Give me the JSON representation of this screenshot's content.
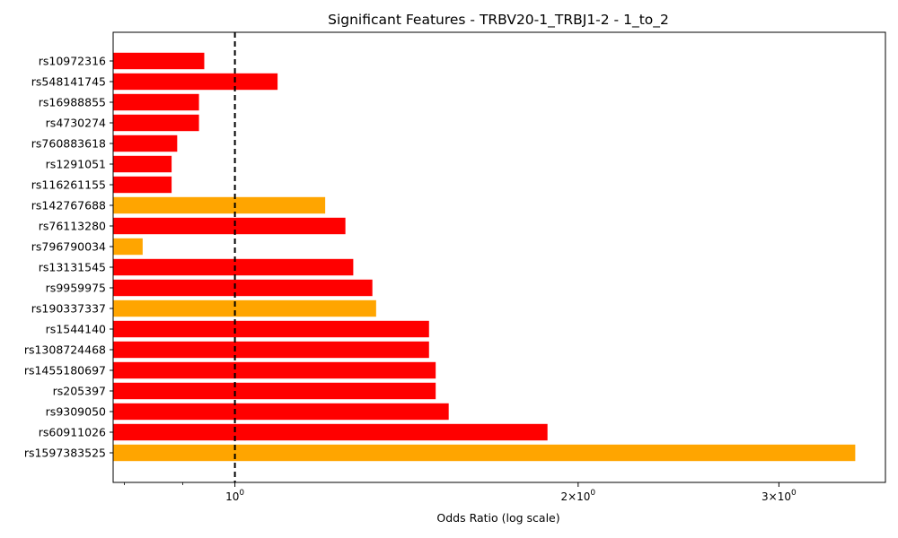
{
  "chart_data": {
    "type": "bar",
    "orientation": "horizontal",
    "title": "Significant Features - TRBV20-1_TRBJ1-2 - 1_to_2",
    "xlabel": "Odds Ratio (log scale)",
    "ylabel": "",
    "xscale": "log",
    "xlim": [
      0.782,
      3.72
    ],
    "reference_line": {
      "x": 1.0,
      "style": "dashed",
      "color": "#000000"
    },
    "x_ticks": [
      {
        "value": 1,
        "base": "10",
        "exponent": "0"
      },
      {
        "value": 2,
        "base": "2×10",
        "exponent": "0"
      },
      {
        "value": 3,
        "base": "3×10",
        "exponent": "0"
      }
    ],
    "colors": {
      "red": "#ff0000",
      "orange": "#ffa500"
    },
    "categories": [
      "rs10972316",
      "rs548141745",
      "rs16988855",
      "rs4730274",
      "rs760883618",
      "rs1291051",
      "rs116261155",
      "rs142767688",
      "rs76113280",
      "rs796790034",
      "rs13131545",
      "rs9959975",
      "rs190337337",
      "rs1544140",
      "rs1308724468",
      "rs1455180697",
      "rs205397",
      "rs9309050",
      "rs60911026",
      "rs1597383525"
    ],
    "values": [
      0.94,
      1.09,
      0.93,
      0.93,
      0.89,
      0.88,
      0.88,
      1.2,
      1.25,
      0.83,
      1.27,
      1.32,
      1.33,
      1.48,
      1.48,
      1.5,
      1.5,
      1.54,
      1.88,
      3.5
    ],
    "bar_colors": [
      "red",
      "red",
      "red",
      "red",
      "red",
      "red",
      "red",
      "orange",
      "red",
      "orange",
      "red",
      "red",
      "orange",
      "red",
      "red",
      "red",
      "red",
      "red",
      "red",
      "orange"
    ],
    "grid": false,
    "legend": "none"
  }
}
